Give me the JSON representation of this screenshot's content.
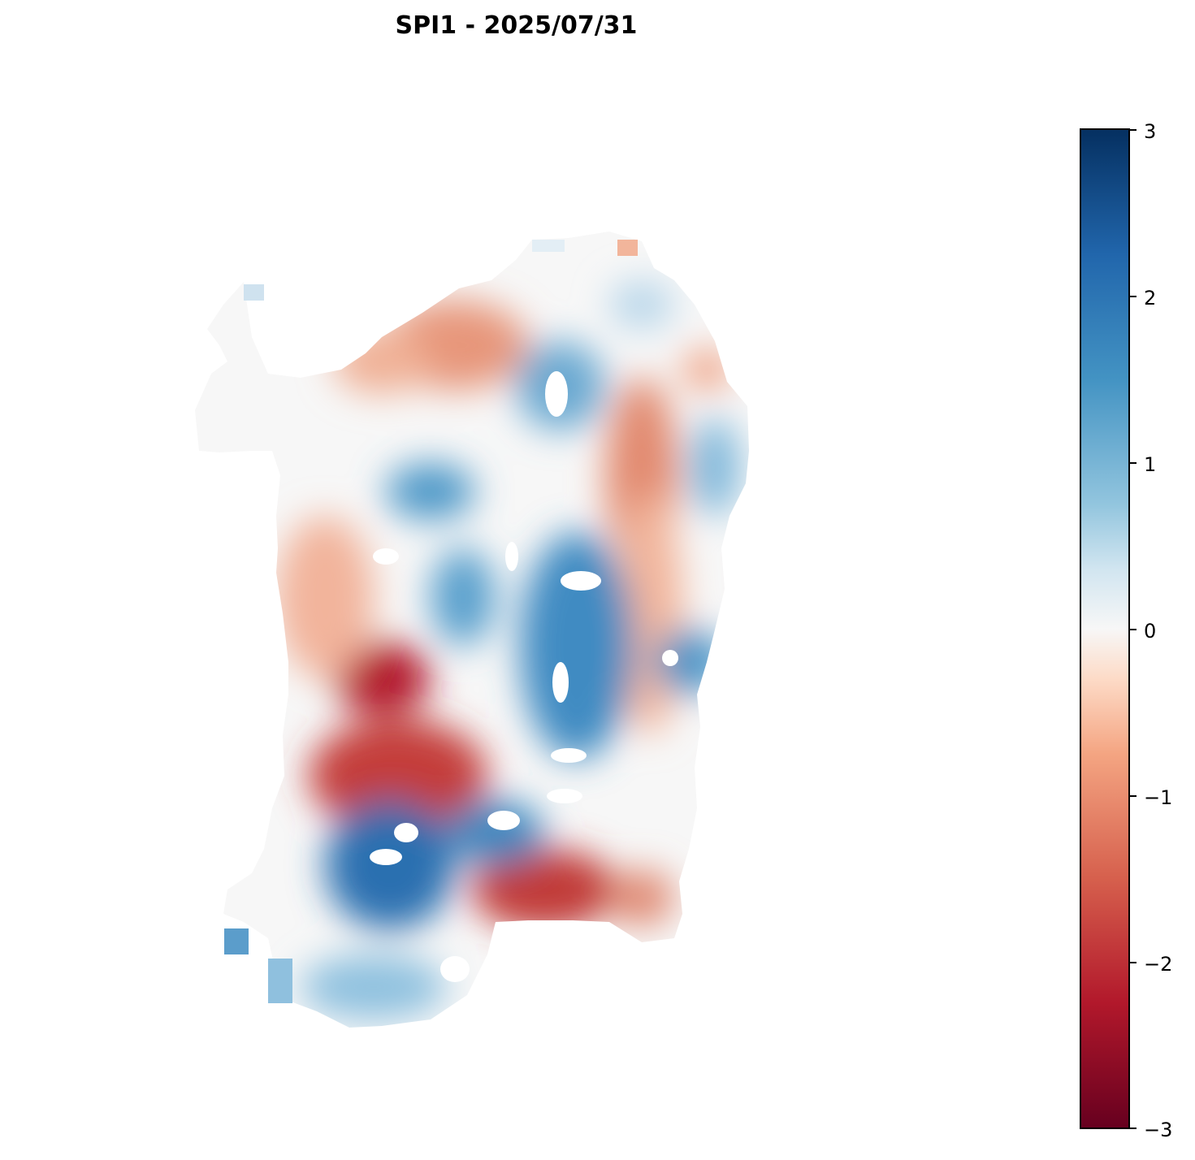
{
  "title": "SPI1 - 2025/07/31",
  "colorbar": {
    "colormap": "RdBu",
    "min": -3,
    "max": 3,
    "ticks": [
      {
        "value": 3,
        "label": "3"
      },
      {
        "value": 2,
        "label": "2"
      },
      {
        "value": 1,
        "label": "1"
      },
      {
        "value": 0,
        "label": "0"
      },
      {
        "value": -1,
        "label": "−1"
      },
      {
        "value": -2,
        "label": "−2"
      },
      {
        "value": -3,
        "label": "−3"
      }
    ],
    "colors": {
      "low": "#67001f",
      "mid": "#f7f7f7",
      "high": "#053061"
    }
  },
  "map": {
    "region": "Sardinia",
    "variable": "SPI1"
  }
}
